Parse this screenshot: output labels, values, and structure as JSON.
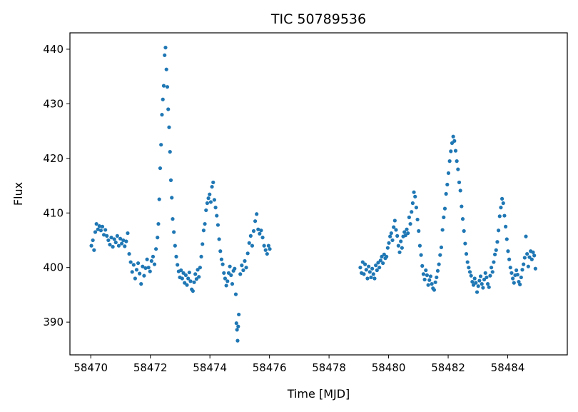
{
  "chart_data": {
    "type": "scatter",
    "title": "TIC 50789536",
    "xlabel": "Time [MJD]",
    "ylabel": "Flux",
    "xlim": [
      58469.3,
      58486.0
    ],
    "ylim": [
      384.0,
      443.0
    ],
    "xticks": [
      58470,
      58472,
      58474,
      58476,
      58478,
      58480,
      58482,
      58484
    ],
    "yticks": [
      390,
      400,
      410,
      420,
      430,
      440
    ],
    "grid": false,
    "marker_color": "#1f77b4",
    "series": [
      {
        "points": [
          [
            58470.02,
            404.0
          ],
          [
            58470.07,
            405.0
          ],
          [
            58470.11,
            403.2
          ],
          [
            58470.15,
            406.5
          ],
          [
            58470.19,
            408.0
          ],
          [
            58470.24,
            407.0
          ],
          [
            58470.29,
            407.6
          ],
          [
            58470.34,
            406.8
          ],
          [
            58470.39,
            407.5
          ],
          [
            58470.44,
            406.0
          ],
          [
            58470.49,
            406.9
          ],
          [
            58470.54,
            405.8
          ],
          [
            58470.59,
            405.0
          ],
          [
            58470.64,
            404.2
          ],
          [
            58470.69,
            405.5
          ],
          [
            58470.74,
            403.8
          ],
          [
            58470.79,
            405.2
          ],
          [
            58470.84,
            404.6
          ],
          [
            58470.89,
            405.8
          ],
          [
            58470.94,
            404.0
          ],
          [
            58470.99,
            405.3
          ],
          [
            58471.04,
            404.4
          ],
          [
            58471.09,
            405.0
          ],
          [
            58471.14,
            403.9
          ],
          [
            58471.19,
            404.8
          ],
          [
            58471.24,
            406.3
          ],
          [
            58471.29,
            402.5
          ],
          [
            58471.34,
            401.0
          ],
          [
            58471.39,
            399.2
          ],
          [
            58471.44,
            400.5
          ],
          [
            58471.49,
            398.0
          ],
          [
            58471.54,
            399.6
          ],
          [
            58471.59,
            400.8
          ],
          [
            58471.64,
            398.9
          ],
          [
            58471.69,
            397.0
          ],
          [
            58471.74,
            400.2
          ],
          [
            58471.79,
            398.5
          ],
          [
            58471.84,
            399.9
          ],
          [
            58471.89,
            401.5
          ],
          [
            58471.94,
            400.0
          ],
          [
            58471.99,
            399.3
          ],
          [
            58472.04,
            401.2
          ],
          [
            58472.09,
            402.0
          ],
          [
            58472.14,
            400.6
          ],
          [
            58472.19,
            403.4
          ],
          [
            58472.24,
            405.5
          ],
          [
            58472.27,
            408.0
          ],
          [
            58472.3,
            412.5
          ],
          [
            58472.33,
            418.2
          ],
          [
            58472.36,
            422.5
          ],
          [
            58472.39,
            428.0
          ],
          [
            58472.42,
            430.8
          ],
          [
            58472.45,
            433.3
          ],
          [
            58472.48,
            438.9
          ],
          [
            58472.51,
            440.3
          ],
          [
            58472.54,
            436.3
          ],
          [
            58472.57,
            433.1
          ],
          [
            58472.6,
            429.0
          ],
          [
            58472.63,
            425.7
          ],
          [
            58472.66,
            421.2
          ],
          [
            58472.69,
            416.0
          ],
          [
            58472.72,
            412.8
          ],
          [
            58472.75,
            408.9
          ],
          [
            58472.79,
            406.5
          ],
          [
            58472.83,
            404.0
          ],
          [
            58472.87,
            402.0
          ],
          [
            58472.91,
            400.5
          ],
          [
            58472.95,
            399.3
          ],
          [
            58472.99,
            398.2
          ],
          [
            58473.03,
            399.5
          ],
          [
            58473.07,
            398.0
          ],
          [
            58473.11,
            399.0
          ],
          [
            58473.15,
            397.2
          ],
          [
            58473.19,
            398.6
          ],
          [
            58473.23,
            396.8
          ],
          [
            58473.27,
            398.0
          ],
          [
            58473.31,
            399.1
          ],
          [
            58473.35,
            397.5
          ],
          [
            58473.39,
            396.0
          ],
          [
            58473.43,
            395.7
          ],
          [
            58473.47,
            397.3
          ],
          [
            58473.51,
            398.8
          ],
          [
            58473.55,
            397.9
          ],
          [
            58473.59,
            399.6
          ],
          [
            58473.63,
            398.3
          ],
          [
            58473.67,
            400.0
          ],
          [
            58473.71,
            402.0
          ],
          [
            58473.75,
            404.3
          ],
          [
            58473.79,
            406.8
          ],
          [
            58473.83,
            408.0
          ],
          [
            58473.87,
            410.5
          ],
          [
            58473.91,
            411.8
          ],
          [
            58473.95,
            412.7
          ],
          [
            58473.99,
            413.4
          ],
          [
            58474.03,
            412.0
          ],
          [
            58474.07,
            414.8
          ],
          [
            58474.11,
            415.6
          ],
          [
            58474.15,
            412.4
          ],
          [
            58474.19,
            411.0
          ],
          [
            58474.23,
            409.5
          ],
          [
            58474.27,
            407.8
          ],
          [
            58474.31,
            405.2
          ],
          [
            58474.35,
            403.0
          ],
          [
            58474.39,
            401.5
          ],
          [
            58474.43,
            400.6
          ],
          [
            58474.47,
            399.0
          ],
          [
            58474.51,
            398.0
          ],
          [
            58474.55,
            396.7
          ],
          [
            58474.59,
            397.5
          ],
          [
            58474.63,
            399.0
          ],
          [
            58474.67,
            400.2
          ],
          [
            58474.71,
            398.6
          ],
          [
            58474.75,
            397.0
          ],
          [
            58474.79,
            399.4
          ],
          [
            58474.83,
            399.8
          ],
          [
            58474.87,
            395.1
          ],
          [
            58474.89,
            389.8
          ],
          [
            58474.91,
            388.6
          ],
          [
            58474.93,
            386.6
          ],
          [
            58474.95,
            389.2
          ],
          [
            58474.97,
            391.4
          ],
          [
            58475.02,
            398.8
          ],
          [
            58475.07,
            400.4
          ],
          [
            58475.12,
            399.5
          ],
          [
            58475.17,
            401.2
          ],
          [
            58475.22,
            400.0
          ],
          [
            58475.27,
            402.6
          ],
          [
            58475.32,
            404.5
          ],
          [
            58475.37,
            405.8
          ],
          [
            58475.42,
            404.0
          ],
          [
            58475.47,
            406.7
          ],
          [
            58475.52,
            408.5
          ],
          [
            58475.57,
            409.8
          ],
          [
            58475.62,
            407.0
          ],
          [
            58475.67,
            406.2
          ],
          [
            58475.72,
            406.8
          ],
          [
            58475.77,
            405.5
          ],
          [
            58475.82,
            404.0
          ],
          [
            58475.87,
            403.2
          ],
          [
            58475.92,
            402.5
          ],
          [
            58475.97,
            404.0
          ],
          [
            58476.01,
            403.4
          ],
          [
            58479.05,
            400.0
          ],
          [
            58479.09,
            399.0
          ],
          [
            58479.13,
            401.0
          ],
          [
            58479.17,
            398.8
          ],
          [
            58479.21,
            400.6
          ],
          [
            58479.25,
            399.6
          ],
          [
            58479.29,
            398.0
          ],
          [
            58479.33,
            400.2
          ],
          [
            58479.37,
            399.2
          ],
          [
            58479.41,
            398.2
          ],
          [
            58479.45,
            399.8
          ],
          [
            58479.49,
            398.8
          ],
          [
            58479.53,
            398.0
          ],
          [
            58479.57,
            400.4
          ],
          [
            58479.61,
            399.5
          ],
          [
            58479.65,
            400.9
          ],
          [
            58479.69,
            400.0
          ],
          [
            58479.73,
            401.3
          ],
          [
            58479.77,
            402.0
          ],
          [
            58479.81,
            400.8
          ],
          [
            58479.85,
            402.4
          ],
          [
            58479.89,
            401.7
          ],
          [
            58479.93,
            402.0
          ],
          [
            58479.97,
            403.6
          ],
          [
            58480.01,
            404.5
          ],
          [
            58480.05,
            405.7
          ],
          [
            58480.09,
            406.3
          ],
          [
            58480.13,
            405.0
          ],
          [
            58480.17,
            407.4
          ],
          [
            58480.21,
            408.6
          ],
          [
            58480.25,
            406.9
          ],
          [
            58480.29,
            405.8
          ],
          [
            58480.33,
            404.0
          ],
          [
            58480.37,
            402.8
          ],
          [
            58480.41,
            404.8
          ],
          [
            58480.45,
            403.6
          ],
          [
            58480.49,
            405.7
          ],
          [
            58480.53,
            406.5
          ],
          [
            58480.57,
            405.9
          ],
          [
            58480.61,
            407.0
          ],
          [
            58480.65,
            406.3
          ],
          [
            58480.69,
            409.2
          ],
          [
            58480.73,
            408.0
          ],
          [
            58480.77,
            410.2
          ],
          [
            58480.81,
            411.8
          ],
          [
            58480.85,
            413.8
          ],
          [
            58480.89,
            413.0
          ],
          [
            58480.93,
            411.0
          ],
          [
            58480.97,
            408.8
          ],
          [
            58481.01,
            406.7
          ],
          [
            58481.05,
            404.0
          ],
          [
            58481.09,
            402.3
          ],
          [
            58481.13,
            400.3
          ],
          [
            58481.17,
            398.8
          ],
          [
            58481.21,
            397.8
          ],
          [
            58481.25,
            399.5
          ],
          [
            58481.29,
            398.6
          ],
          [
            58481.33,
            396.8
          ],
          [
            58481.37,
            397.7
          ],
          [
            58481.41,
            398.4
          ],
          [
            58481.45,
            397.0
          ],
          [
            58481.49,
            396.2
          ],
          [
            58481.53,
            395.9
          ],
          [
            58481.57,
            397.3
          ],
          [
            58481.61,
            398.2
          ],
          [
            58481.65,
            399.4
          ],
          [
            58481.69,
            400.6
          ],
          [
            58481.73,
            402.3
          ],
          [
            58481.77,
            403.7
          ],
          [
            58481.81,
            406.9
          ],
          [
            58481.85,
            409.2
          ],
          [
            58481.89,
            410.8
          ],
          [
            58481.93,
            413.5
          ],
          [
            58481.97,
            415.2
          ],
          [
            58482.01,
            417.3
          ],
          [
            58482.05,
            419.5
          ],
          [
            58482.09,
            421.3
          ],
          [
            58482.13,
            422.8
          ],
          [
            58482.17,
            424.0
          ],
          [
            58482.21,
            423.2
          ],
          [
            58482.25,
            421.4
          ],
          [
            58482.29,
            419.5
          ],
          [
            58482.33,
            418.0
          ],
          [
            58482.37,
            415.6
          ],
          [
            58482.41,
            414.1
          ],
          [
            58482.45,
            411.2
          ],
          [
            58482.49,
            408.9
          ],
          [
            58482.53,
            406.7
          ],
          [
            58482.57,
            404.4
          ],
          [
            58482.61,
            402.5
          ],
          [
            58482.65,
            401.0
          ],
          [
            58482.69,
            400.0
          ],
          [
            58482.73,
            399.2
          ],
          [
            58482.77,
            398.5
          ],
          [
            58482.81,
            397.4
          ],
          [
            58482.85,
            396.8
          ],
          [
            58482.89,
            398.0
          ],
          [
            58482.93,
            397.2
          ],
          [
            58482.97,
            395.5
          ],
          [
            58483.01,
            396.6
          ],
          [
            58483.05,
            397.6
          ],
          [
            58483.09,
            398.4
          ],
          [
            58483.13,
            397.0
          ],
          [
            58483.17,
            396.3
          ],
          [
            58483.21,
            397.8
          ],
          [
            58483.25,
            399.0
          ],
          [
            58483.29,
            398.2
          ],
          [
            58483.33,
            397.0
          ],
          [
            58483.37,
            396.4
          ],
          [
            58483.41,
            398.5
          ],
          [
            58483.45,
            400.0
          ],
          [
            58483.49,
            399.2
          ],
          [
            58483.53,
            401.0
          ],
          [
            58483.57,
            402.4
          ],
          [
            58483.61,
            403.2
          ],
          [
            58483.65,
            404.7
          ],
          [
            58483.69,
            406.8
          ],
          [
            58483.73,
            409.4
          ],
          [
            58483.77,
            411.0
          ],
          [
            58483.81,
            412.6
          ],
          [
            58483.85,
            411.8
          ],
          [
            58483.89,
            409.5
          ],
          [
            58483.93,
            407.5
          ],
          [
            58483.97,
            405.2
          ],
          [
            58484.01,
            403.0
          ],
          [
            58484.05,
            401.5
          ],
          [
            58484.09,
            400.0
          ],
          [
            58484.13,
            399.0
          ],
          [
            58484.17,
            398.0
          ],
          [
            58484.21,
            397.2
          ],
          [
            58484.25,
            398.6
          ],
          [
            58484.29,
            399.5
          ],
          [
            58484.33,
            398.7
          ],
          [
            58484.37,
            397.4
          ],
          [
            58484.41,
            396.9
          ],
          [
            58484.45,
            398.2
          ],
          [
            58484.49,
            399.6
          ],
          [
            58484.53,
            400.6
          ],
          [
            58484.57,
            401.8
          ],
          [
            58484.61,
            405.7
          ],
          [
            58484.65,
            402.5
          ],
          [
            58484.69,
            400.2
          ],
          [
            58484.73,
            401.9
          ],
          [
            58484.77,
            403.0
          ],
          [
            58484.81,
            401.5
          ],
          [
            58484.85,
            402.8
          ],
          [
            58484.89,
            402.2
          ],
          [
            58484.93,
            399.8
          ]
        ]
      }
    ]
  }
}
